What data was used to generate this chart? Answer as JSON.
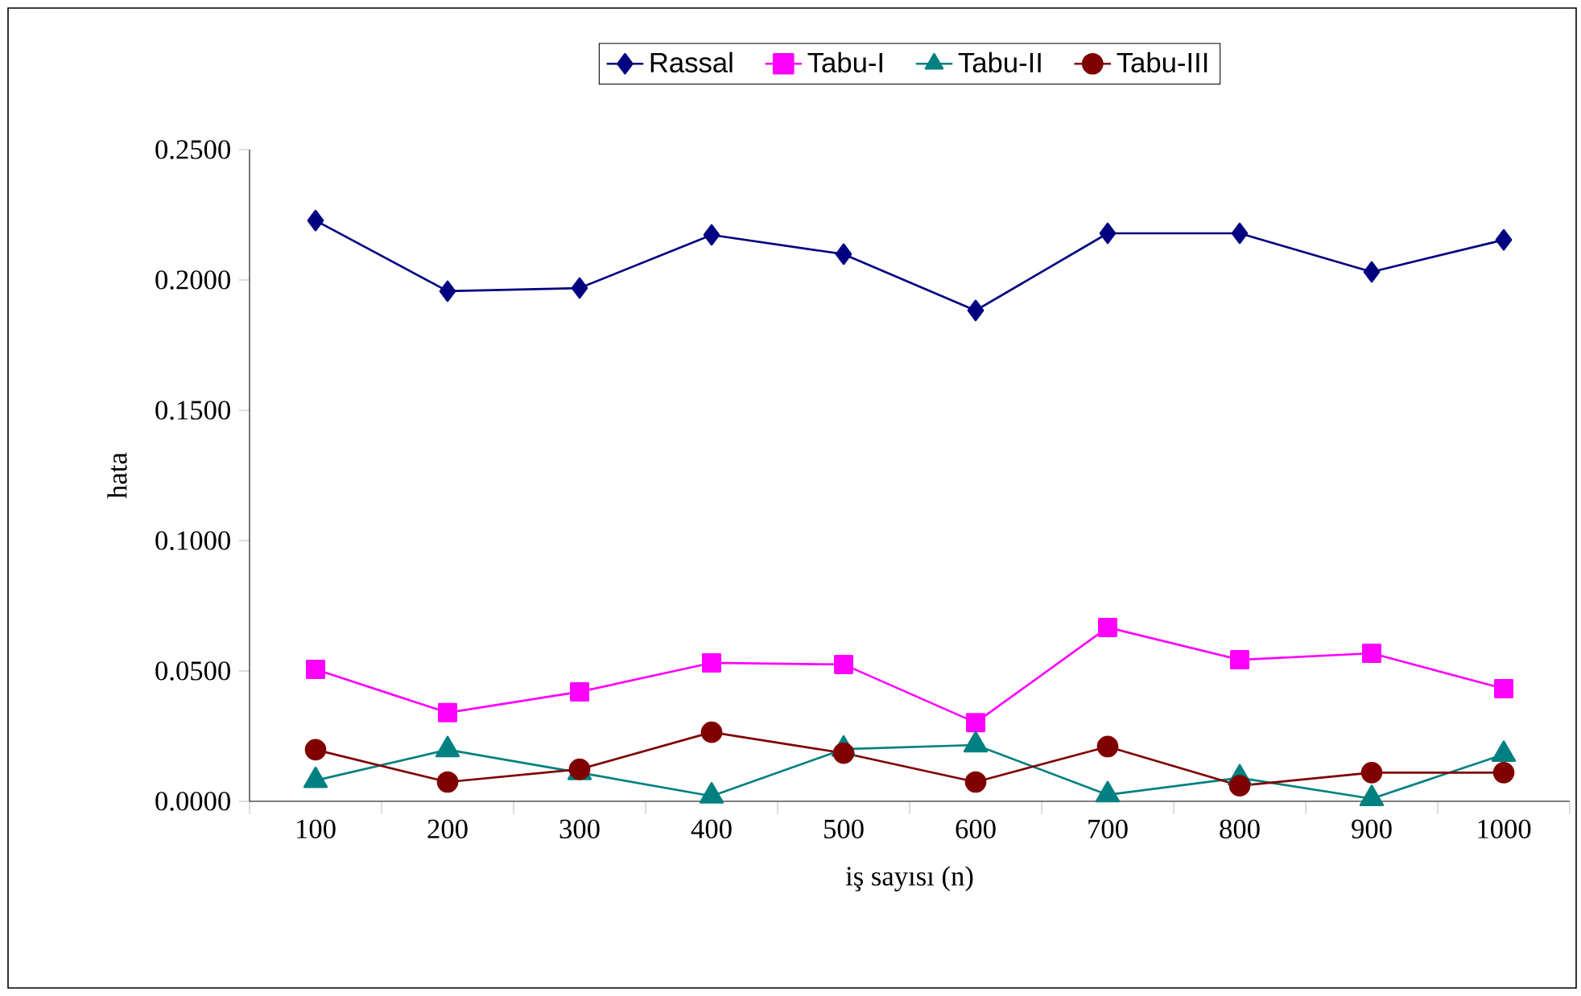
{
  "chart_data": {
    "type": "line",
    "xlabel": "iş sayısı (n)",
    "ylabel": "hata",
    "categories": [
      "100",
      "200",
      "300",
      "400",
      "500",
      "600",
      "700",
      "800",
      "900",
      "1000"
    ],
    "series": [
      {
        "name": "Rassal",
        "color": "#000080",
        "marker": "diamond",
        "values": [
          0.2228,
          0.1957,
          0.1969,
          0.2173,
          0.2099,
          0.1883,
          0.2179,
          0.2179,
          0.2031,
          0.2154
        ]
      },
      {
        "name": "Tabu-I",
        "color": "#ff00ff",
        "marker": "square",
        "values": [
          0.0506,
          0.034,
          0.042,
          0.0531,
          0.0525,
          0.0302,
          0.0667,
          0.0543,
          0.0568,
          0.0432
        ]
      },
      {
        "name": "Tabu-II",
        "color": "#008080",
        "marker": "triangle",
        "values": [
          0.008,
          0.0198,
          0.011,
          0.002,
          0.02,
          0.0216,
          0.0025,
          0.009,
          0.001,
          0.018
        ]
      },
      {
        "name": "Tabu-III",
        "color": "#800000",
        "marker": "circle",
        "values": [
          0.0198,
          0.0074,
          0.0123,
          0.0265,
          0.0185,
          0.0074,
          0.021,
          0.006,
          0.011,
          0.011
        ]
      }
    ],
    "ylim": [
      0,
      0.25
    ],
    "yticks": [
      {
        "value": 0,
        "label": "0.0000"
      },
      {
        "value": 0.05,
        "label": "0.0500"
      },
      {
        "value": 0.1,
        "label": "0.1000"
      },
      {
        "value": 0.15,
        "label": "0.1500"
      },
      {
        "value": 0.2,
        "label": "0.2000"
      },
      {
        "value": 0.25,
        "label": "0.2500"
      }
    ],
    "legend": "top",
    "grid": false,
    "line_style": "solid"
  }
}
